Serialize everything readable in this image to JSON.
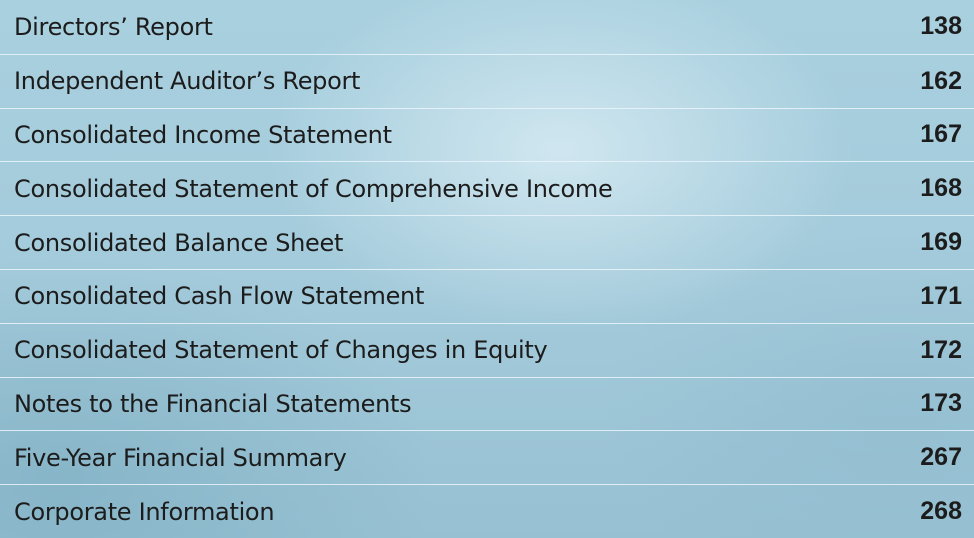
{
  "contents": [
    {
      "title": "Directors’ Report",
      "page": 138
    },
    {
      "title": "Independent Auditor’s Report",
      "page": 162
    },
    {
      "title": "Consolidated Income Statement",
      "page": 167
    },
    {
      "title": "Consolidated Statement of Comprehensive Income",
      "page": 168
    },
    {
      "title": "Consolidated Balance Sheet",
      "page": 169
    },
    {
      "title": "Consolidated Cash Flow Statement",
      "page": 171
    },
    {
      "title": "Consolidated Statement of Changes in Equity",
      "page": 172
    },
    {
      "title": "Notes to the Financial Statements",
      "page": 173
    },
    {
      "title": "Five-Year Financial Summary",
      "page": 267
    },
    {
      "title": "Corporate Information",
      "page": 268
    }
  ]
}
